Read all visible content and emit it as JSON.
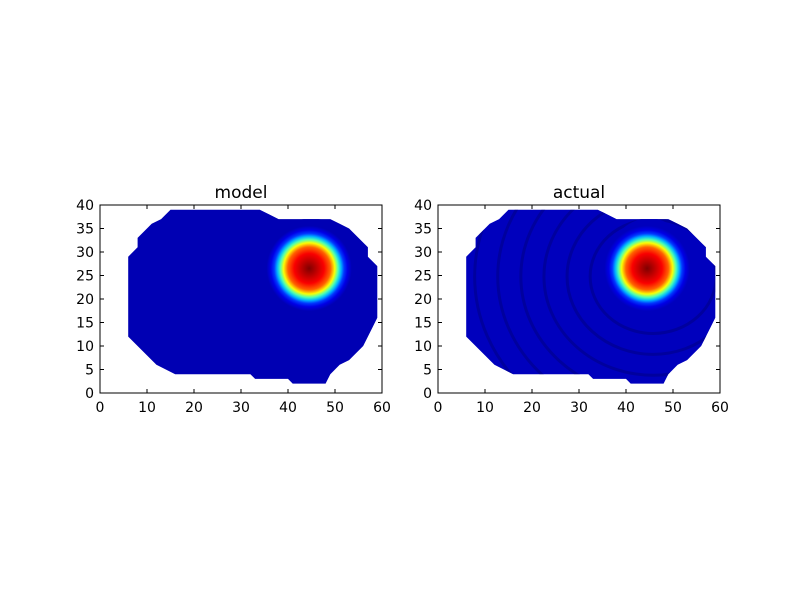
{
  "chart_data": [
    {
      "type": "heatmap",
      "title": "model",
      "xlabel": "",
      "ylabel": "",
      "xlim": [
        0,
        60
      ],
      "ylim": [
        0,
        40
      ],
      "xticks": [
        0,
        10,
        20,
        30,
        40,
        50,
        60
      ],
      "yticks": [
        0,
        5,
        10,
        15,
        20,
        25,
        30,
        35,
        40
      ],
      "colormap": "jet",
      "grid": false,
      "hotspot": {
        "x": 44.5,
        "y": 26.5,
        "rx": 5.5,
        "ry": 6.5,
        "peak": 1.0
      },
      "background_level": 0.05,
      "faint_rings": false,
      "boundary_polygon": [
        [
          6,
          12
        ],
        [
          6,
          29
        ],
        [
          8,
          31
        ],
        [
          8,
          33
        ],
        [
          11,
          36
        ],
        [
          13,
          37
        ],
        [
          15,
          39
        ],
        [
          34,
          39
        ],
        [
          36,
          38
        ],
        [
          38,
          37
        ],
        [
          49,
          37
        ],
        [
          51,
          36
        ],
        [
          53,
          35
        ],
        [
          55,
          33
        ],
        [
          57,
          31
        ],
        [
          57,
          29
        ],
        [
          59,
          27
        ],
        [
          59,
          16
        ],
        [
          58,
          14
        ],
        [
          57,
          12
        ],
        [
          56,
          10
        ],
        [
          53,
          7
        ],
        [
          51,
          6
        ],
        [
          49,
          4
        ],
        [
          48,
          2
        ],
        [
          41,
          2
        ],
        [
          40,
          3
        ],
        [
          33,
          3
        ],
        [
          32,
          4
        ],
        [
          16,
          4
        ],
        [
          14,
          5
        ],
        [
          12,
          6
        ],
        [
          10,
          8
        ],
        [
          8,
          10
        ]
      ]
    },
    {
      "type": "heatmap",
      "title": "actual",
      "xlabel": "",
      "ylabel": "",
      "xlim": [
        0,
        60
      ],
      "ylim": [
        0,
        40
      ],
      "xticks": [
        0,
        10,
        20,
        30,
        40,
        50,
        60
      ],
      "yticks": [
        0,
        5,
        10,
        15,
        20,
        25,
        30,
        35,
        40
      ],
      "colormap": "jet",
      "grid": false,
      "hotspot": {
        "x": 44.5,
        "y": 26.5,
        "rx": 5.5,
        "ry": 6.5,
        "peak": 1.0
      },
      "background_level": 0.06,
      "faint_rings": true,
      "boundary_polygon": [
        [
          6,
          12
        ],
        [
          6,
          29
        ],
        [
          8,
          31
        ],
        [
          8,
          33
        ],
        [
          11,
          36
        ],
        [
          13,
          37
        ],
        [
          15,
          39
        ],
        [
          34,
          39
        ],
        [
          36,
          38
        ],
        [
          38,
          37
        ],
        [
          49,
          37
        ],
        [
          51,
          36
        ],
        [
          53,
          35
        ],
        [
          55,
          33
        ],
        [
          57,
          31
        ],
        [
          57,
          29
        ],
        [
          59,
          27
        ],
        [
          59,
          16
        ],
        [
          58,
          14
        ],
        [
          57,
          12
        ],
        [
          56,
          10
        ],
        [
          53,
          7
        ],
        [
          51,
          6
        ],
        [
          49,
          4
        ],
        [
          48,
          2
        ],
        [
          41,
          2
        ],
        [
          40,
          3
        ],
        [
          33,
          3
        ],
        [
          32,
          4
        ],
        [
          16,
          4
        ],
        [
          14,
          5
        ],
        [
          12,
          6
        ],
        [
          10,
          8
        ],
        [
          8,
          10
        ]
      ]
    }
  ]
}
